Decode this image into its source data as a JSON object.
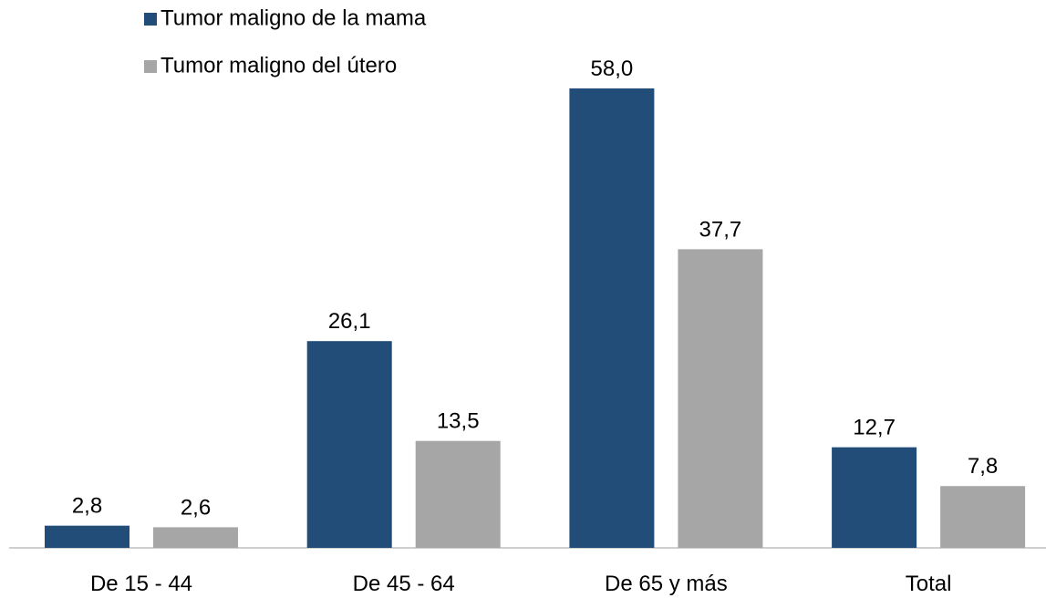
{
  "chart_data": {
    "type": "bar",
    "categories": [
      "De 15 - 44",
      "De 45 - 64",
      "De 65 y más",
      "Total"
    ],
    "series": [
      {
        "name": "Tumor maligno de la mama",
        "color": "#214d78",
        "values": [
          2.8,
          26.1,
          58.0,
          12.7
        ],
        "value_labels": [
          "2,8",
          "26,1",
          "58,0",
          "12,7"
        ]
      },
      {
        "name": "Tumor maligno del útero",
        "color": "#a6a6a6",
        "values": [
          2.6,
          13.5,
          37.7,
          7.8
        ],
        "value_labels": [
          "2,6",
          "13,5",
          "37,7",
          "7,8"
        ]
      }
    ],
    "legend": "top-left"
  }
}
